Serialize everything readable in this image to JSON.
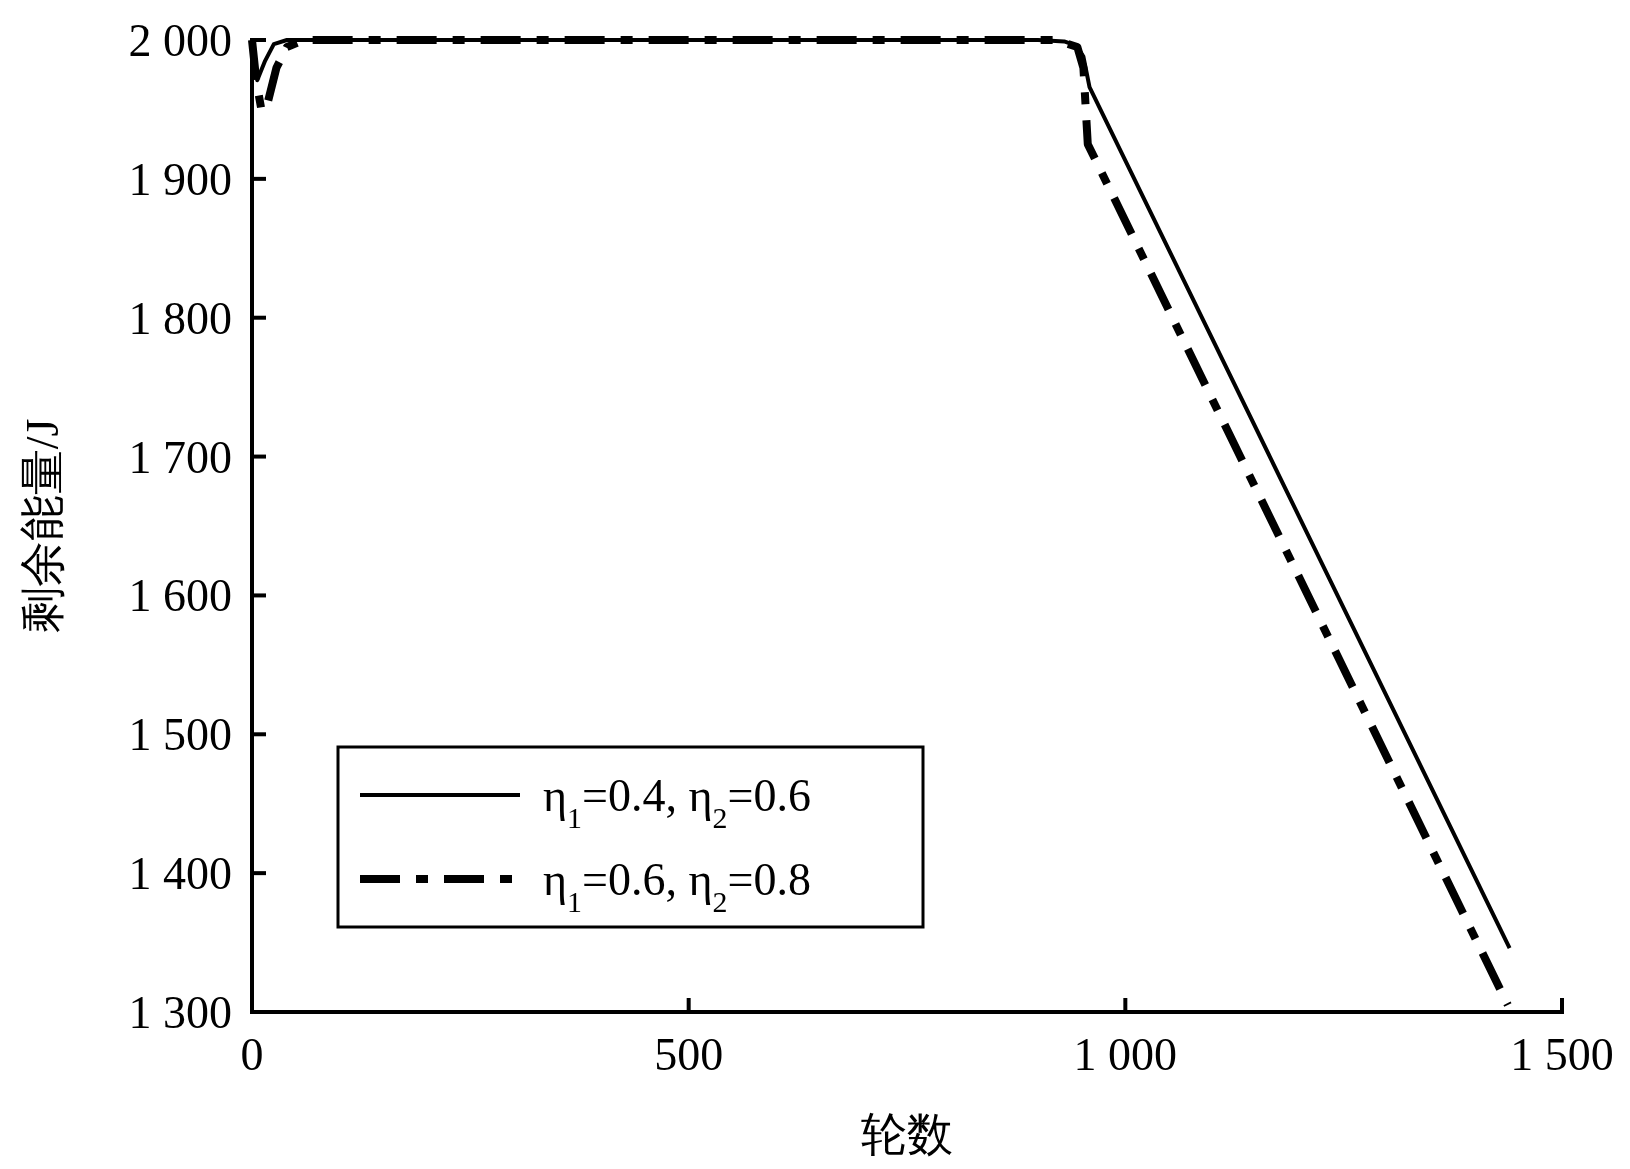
{
  "chart_data": {
    "type": "line",
    "xlabel": "轮数",
    "ylabel": "剩余能量/J",
    "xlim": [
      0,
      1500
    ],
    "ylim": [
      1300,
      2000
    ],
    "xticks": [
      0,
      500,
      {
        "value": 1000,
        "label": "1 000"
      },
      {
        "value": 1500,
        "label": "1 500"
      }
    ],
    "yticks": [
      {
        "value": 1300,
        "label": "1 300"
      },
      {
        "value": 1400,
        "label": "1 400"
      },
      {
        "value": 1500,
        "label": "1 500"
      },
      {
        "value": 1600,
        "label": "1 600"
      },
      {
        "value": 1700,
        "label": "1 700"
      },
      {
        "value": 1800,
        "label": "1 800"
      },
      {
        "value": 1900,
        "label": "1 900"
      },
      {
        "value": 2000,
        "label": "2 000"
      }
    ],
    "grid": false,
    "legend": "bottom left",
    "marker": "none",
    "series": [
      {
        "name": "η$_{1}$=0.4, η$_{2}$=0.6",
        "color": "#000000",
        "line_style": "solid",
        "x": [
          0,
          3,
          6,
          15,
          25,
          40,
          900,
          930,
          944,
          952,
          959,
          1440
        ],
        "values": [
          2000,
          1985,
          1971,
          1985,
          1997,
          2000,
          2000,
          1999,
          1996,
          1988,
          1966,
          1346
        ]
      },
      {
        "name": "η$_{1}$=0.6, η$_{2}$=0.8",
        "color": "#000000",
        "line_style": "dashdot",
        "x": [
          0,
          5,
          11,
          18,
          28,
          40,
          60,
          920,
          945,
          952,
          957,
          1438
        ],
        "values": [
          2000,
          1970,
          1949,
          1955,
          1980,
          1995,
          2000,
          2000,
          1995,
          1980,
          1925,
          1305
        ]
      }
    ]
  }
}
